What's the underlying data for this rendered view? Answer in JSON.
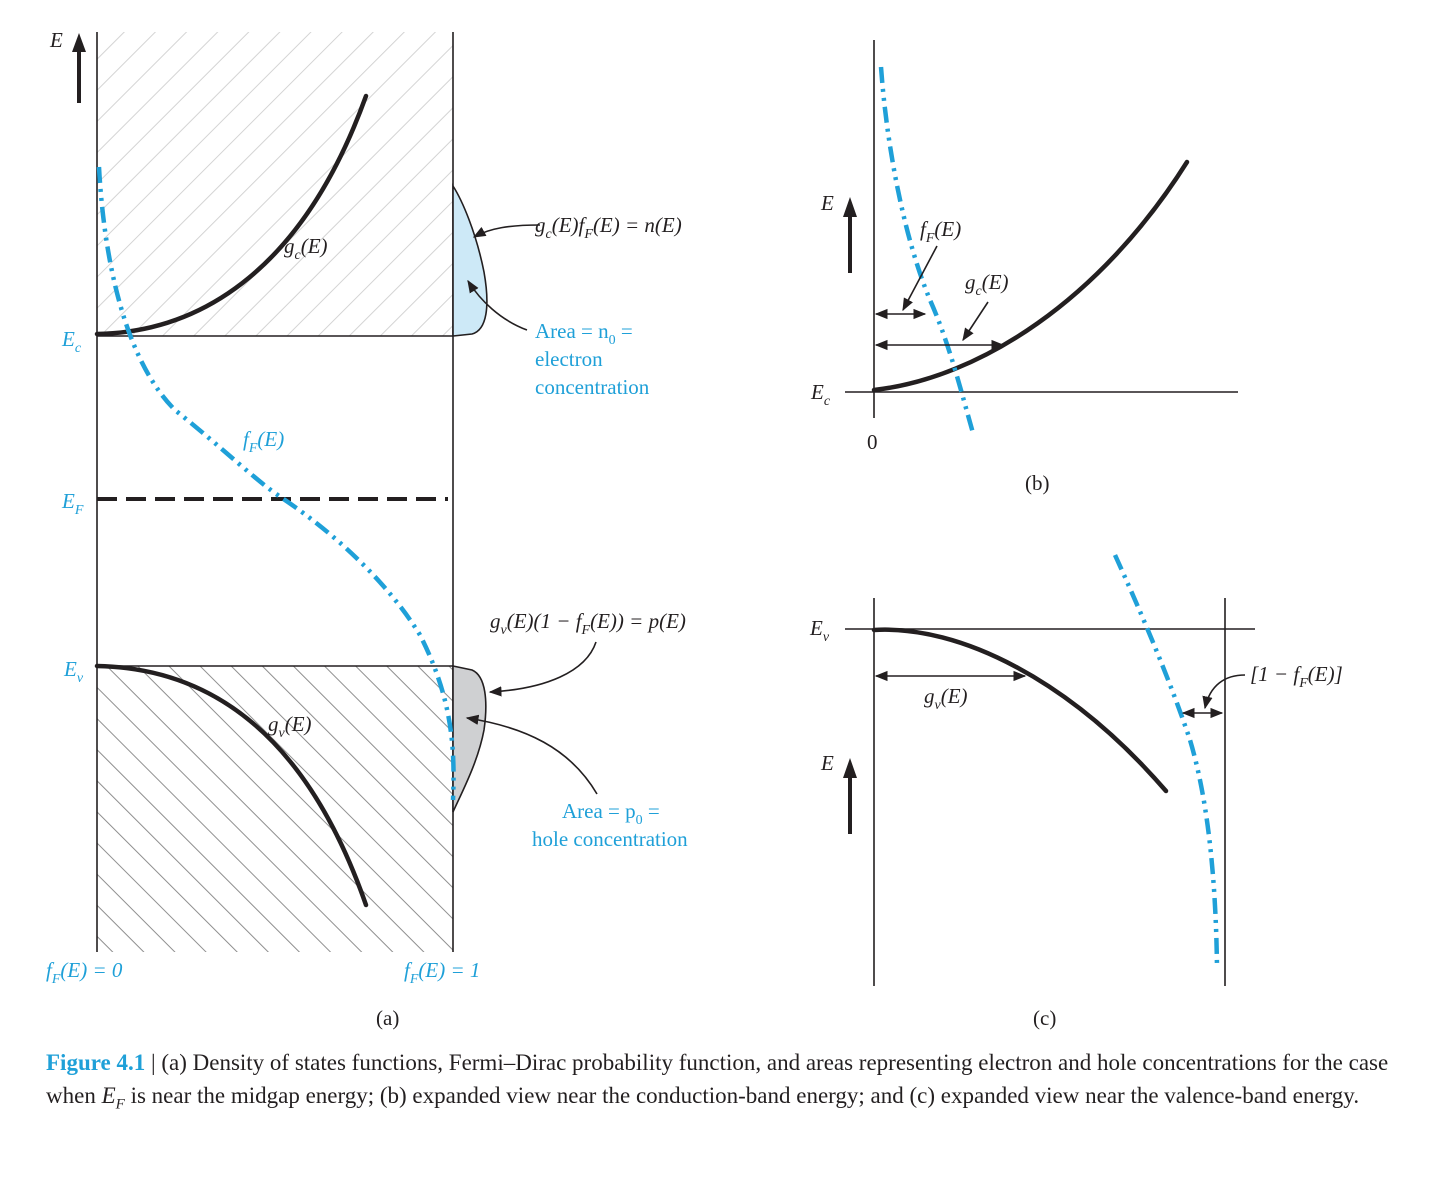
{
  "panel_a": {
    "axis": "E",
    "ec": "E",
    "ec_sub": "c",
    "ef": "E",
    "ef_sub": "F",
    "ev": "E",
    "ev_sub": "v",
    "gc": "g",
    "gc_sub": "c",
    "gc_rest": "(E)",
    "gv": "g",
    "gv_sub": "v",
    "gv_rest": "(E)",
    "ff": "f",
    "ff_sub": "F",
    "ff_rest": "(E)",
    "ff0": "f",
    "ff0_sub": "F",
    "ff0_rest": "(E) = 0",
    "ff1": "f",
    "ff1_sub": "F",
    "ff1_rest": "(E) = 1",
    "n_expr": {
      "a": "g",
      "a_sub": "c",
      "b": "(E)f",
      "b_sub": "F",
      "c": "(E) = n(E)"
    },
    "p_expr": {
      "a": "g",
      "a_sub": "v",
      "b": "(E)(1 − f",
      "b_sub": "F",
      "c": "(E)) = p(E)"
    },
    "electron_area": [
      "Area = n",
      "0",
      " =",
      "electron",
      "concentration"
    ],
    "hole_area": [
      "Area = p",
      "0",
      " =",
      "hole concentration"
    ],
    "panel_label": "(a)"
  },
  "panel_b": {
    "axis": "E",
    "ec": "E",
    "ec_sub": "c",
    "zero": "0",
    "ff": "f",
    "ff_sub": "F",
    "ff_rest": "(E)",
    "gc": "g",
    "gc_sub": "c",
    "gc_rest": "(E)",
    "panel_label": "(b)"
  },
  "panel_c": {
    "axis": "E",
    "ev": "E",
    "ev_sub": "v",
    "gv": "g",
    "gv_sub": "v",
    "gv_rest": "(E)",
    "one_minus": "[1 − f",
    "one_minus_sub": "F",
    "one_minus_rest": "(E)]",
    "panel_label": "(c)"
  },
  "caption": {
    "label": "Figure 4.1",
    "sep": " | ",
    "text1": "(a) Density of states functions, Fermi–Dirac probability function, and areas representing electron and hole concentrations for the case when ",
    "ef": "E",
    "ef_sub": "F",
    "text2": " is near the midgap energy; (b) expanded view near the conduction-band energy; and (c) expanded view near the valence-band energy."
  },
  "colors": {
    "blue": "#1fa0d8",
    "black": "#231f20",
    "electron_fill": "#cde9f7",
    "hole_fill": "#cfd0d2"
  }
}
